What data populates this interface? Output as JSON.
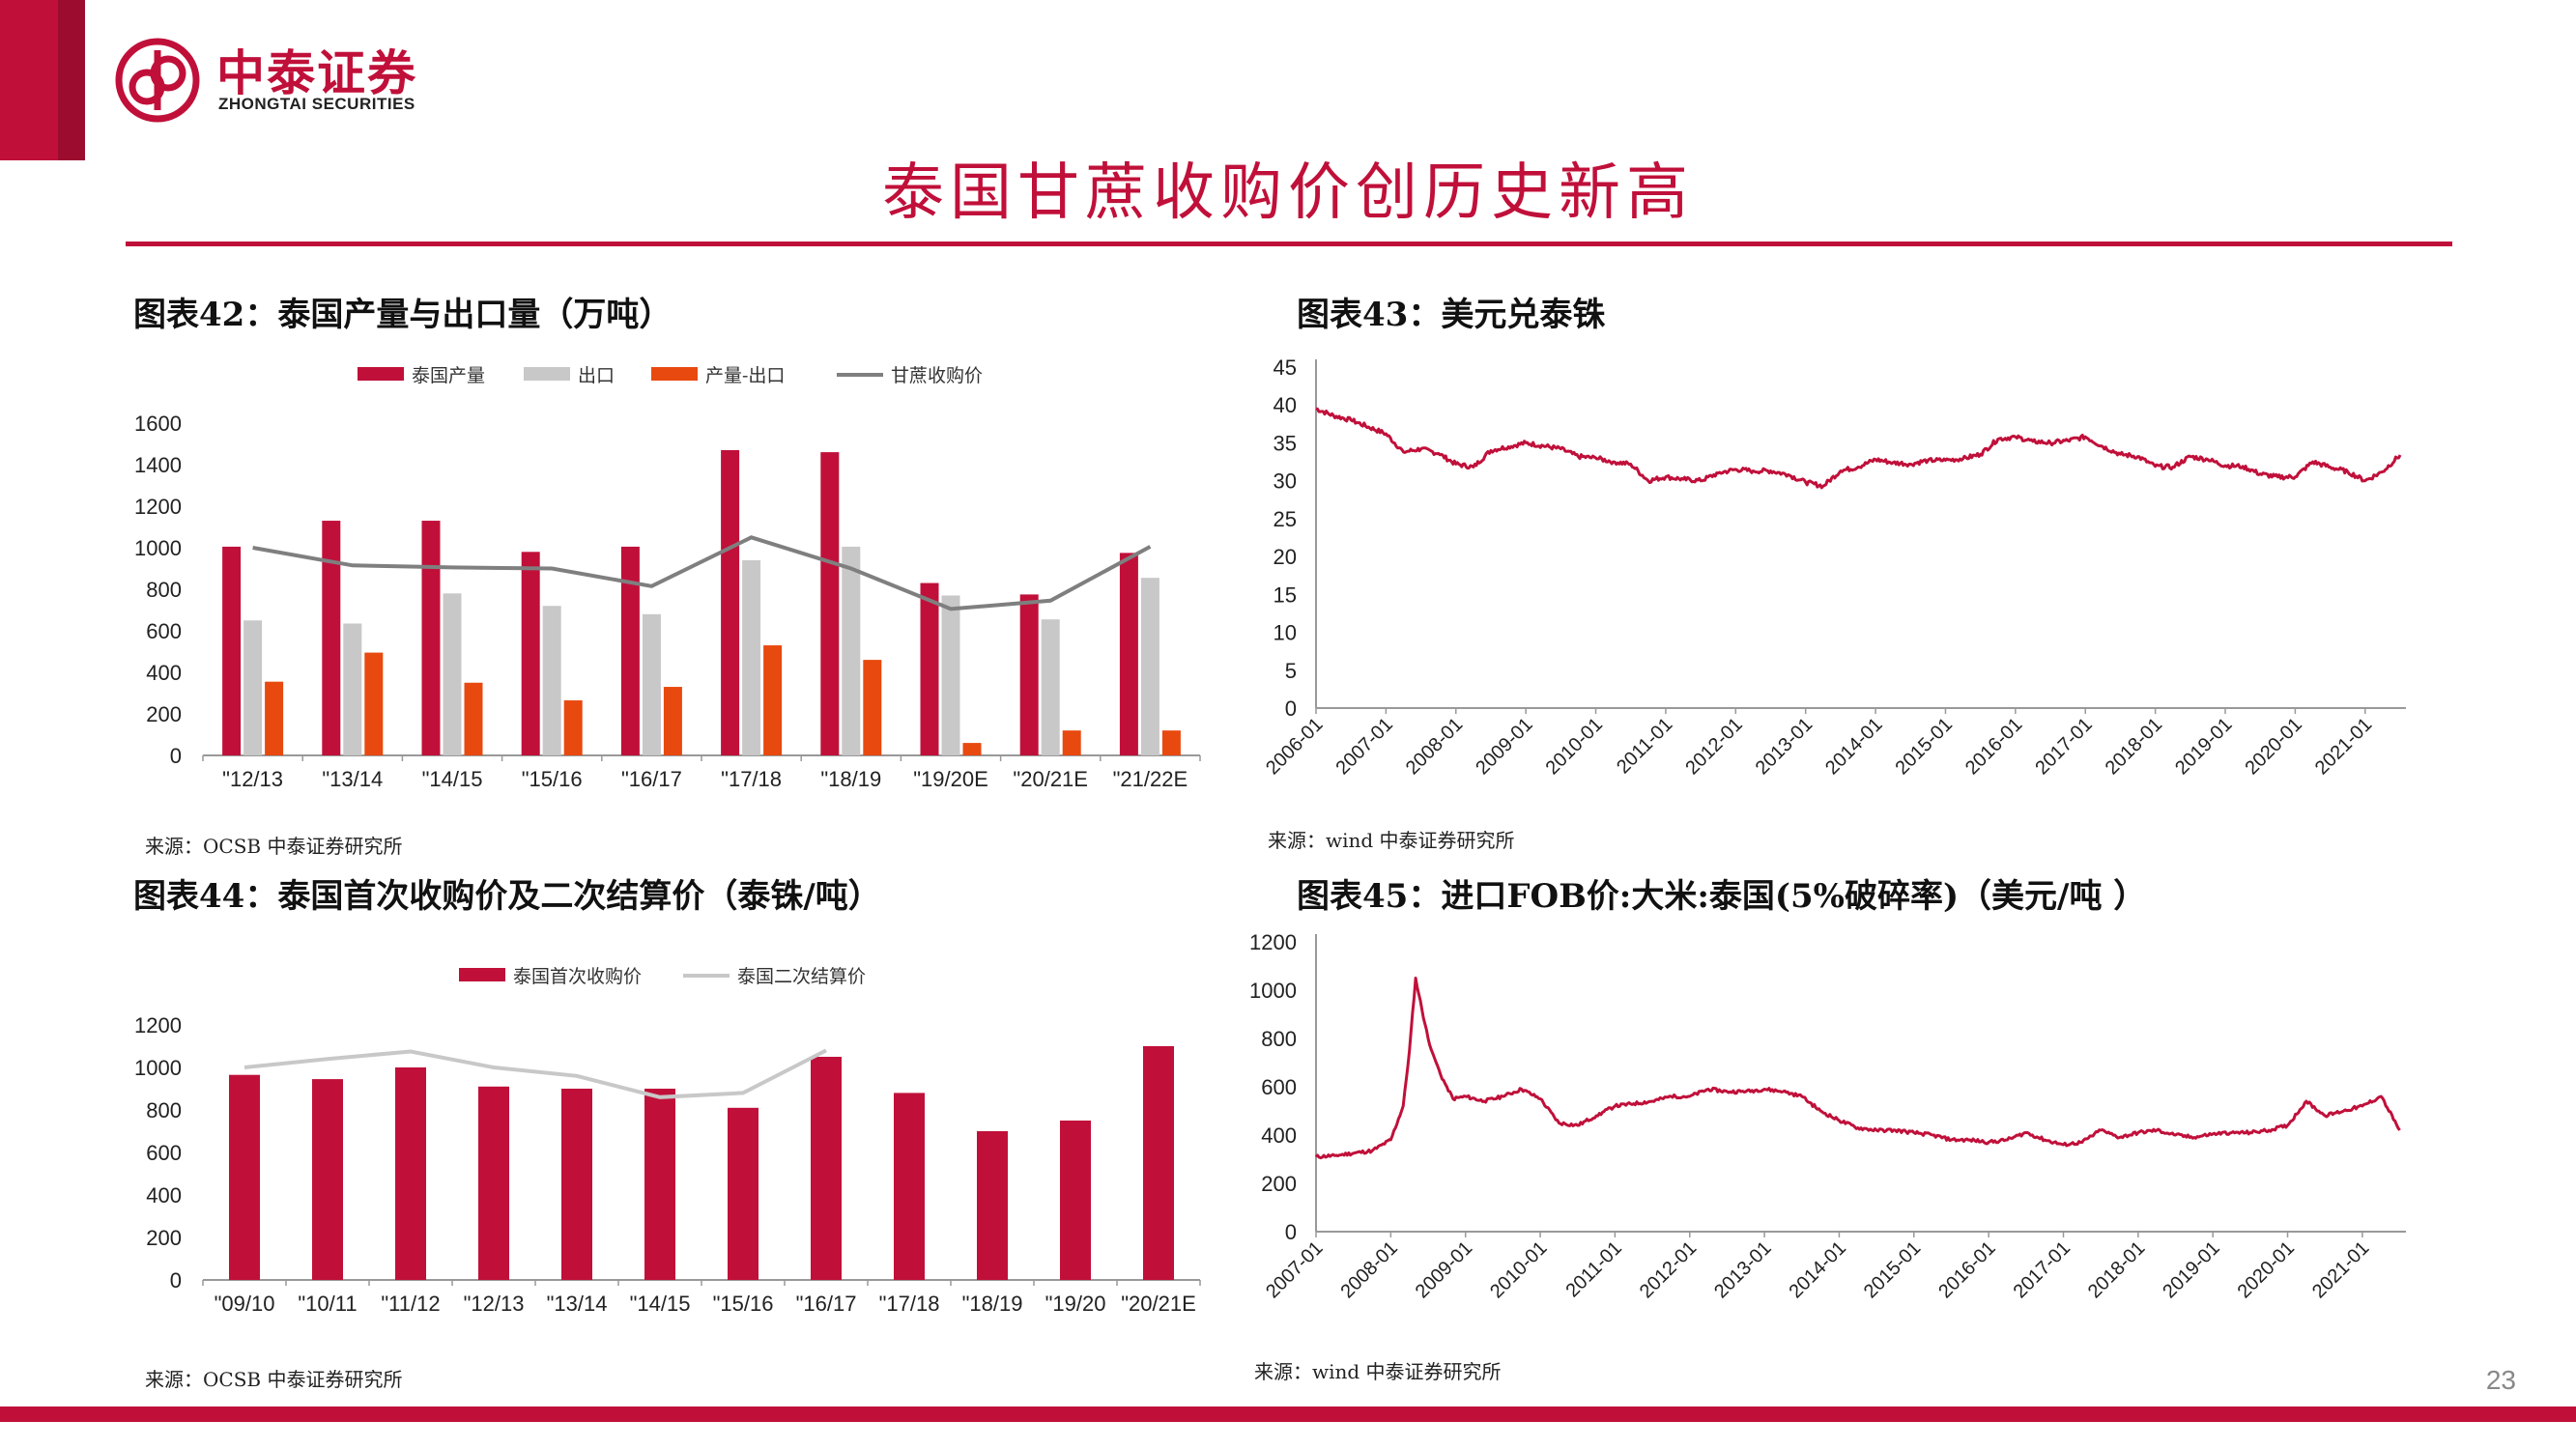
{
  "header": {
    "logo_cn": "中泰证券",
    "logo_en": "ZHONGTAI SECURITIES",
    "brand_color": "#c0103a",
    "title": "泰国甘蔗收购价创历史新高"
  },
  "page_number": "23",
  "charts": {
    "c42": {
      "title": "图表42：泰国产量与出口量（万吨）",
      "source": "来源：OCSB   中泰证券研究所"
    },
    "c43": {
      "title": "图表43：美元兑泰铢",
      "source": "来源：wind   中泰证券研究所"
    },
    "c44": {
      "title": "图表44：泰国首次收购价及二次结算价（泰铢/吨）",
      "source": "来源：OCSB   中泰证券研究所"
    },
    "c45": {
      "title": "图表45：进口FOB价:大米:泰国(5%破碎率)（美元/吨 ）",
      "source": "来源：wind   中泰证券研究所"
    }
  },
  "chart_data": [
    {
      "id": "c42",
      "type": "bar",
      "categories": [
        "\"12/13",
        "\"13/14",
        "\"14/15",
        "\"15/16",
        "\"16/17",
        "\"17/18",
        "\"18/19",
        "\"19/20E",
        "\"20/21E",
        "\"21/22E"
      ],
      "series": [
        {
          "name": "泰国产量",
          "type": "bar",
          "color": "#c0103a",
          "values": [
            1005,
            1130,
            1130,
            980,
            1005,
            1470,
            1460,
            830,
            775,
            975
          ]
        },
        {
          "name": "出口",
          "type": "bar",
          "color": "#c8c8c8",
          "values": [
            650,
            635,
            780,
            720,
            680,
            940,
            1005,
            770,
            655,
            855
          ]
        },
        {
          "name": "产量-出口",
          "type": "bar",
          "color": "#e8490f",
          "values": [
            355,
            495,
            350,
            265,
            330,
            530,
            460,
            60,
            120,
            120
          ]
        },
        {
          "name": "甘蔗收购价",
          "type": "line",
          "color": "#7f7f7f",
          "values": [
            1000,
            915,
            905,
            900,
            815,
            1050,
            900,
            705,
            745,
            1005
          ]
        }
      ],
      "ylim": [
        0,
        1600
      ],
      "yticks": [
        0,
        200,
        400,
        600,
        800,
        1000,
        1200,
        1400,
        1600
      ],
      "legend": "top"
    },
    {
      "id": "c43",
      "type": "line",
      "series": [
        {
          "name": "",
          "color": "#c0103a",
          "x": [
            "2006-01",
            "2006-04",
            "2006-07",
            "2006-10",
            "2007-01",
            "2007-04",
            "2007-07",
            "2007-10",
            "2008-01",
            "2008-04",
            "2008-07",
            "2008-10",
            "2009-01",
            "2009-04",
            "2009-07",
            "2009-10",
            "2010-01",
            "2010-04",
            "2010-07",
            "2010-10",
            "2011-01",
            "2011-04",
            "2011-07",
            "2011-10",
            "2012-01",
            "2012-04",
            "2012-07",
            "2012-10",
            "2013-01",
            "2013-04",
            "2013-07",
            "2013-10",
            "2014-01",
            "2014-04",
            "2014-07",
            "2014-10",
            "2015-01",
            "2015-04",
            "2015-07",
            "2015-10",
            "2016-01",
            "2016-04",
            "2016-07",
            "2016-10",
            "2017-01",
            "2017-04",
            "2017-07",
            "2017-10",
            "2018-01",
            "2018-04",
            "2018-07",
            "2018-10",
            "2019-01",
            "2019-04",
            "2019-07",
            "2019-10",
            "2020-01",
            "2020-04",
            "2020-07",
            "2020-10",
            "2021-01",
            "2021-04",
            "2021-07"
          ],
          "values": [
            39.5,
            38.6,
            38.0,
            37.1,
            36.2,
            33.8,
            34.2,
            33.6,
            32.2,
            31.8,
            34.0,
            34.5,
            35.0,
            34.6,
            34.2,
            33.2,
            33.0,
            32.5,
            32.2,
            30.0,
            30.5,
            30.2,
            30.0,
            31.0,
            31.5,
            31.3,
            31.3,
            30.8,
            29.8,
            29.3,
            31.3,
            31.8,
            32.8,
            32.4,
            32.2,
            32.7,
            32.7,
            32.9,
            33.5,
            35.5,
            35.8,
            35.2,
            35.0,
            35.3,
            35.8,
            34.5,
            33.5,
            33.2,
            31.9,
            31.8,
            33.2,
            32.8,
            32.0,
            31.9,
            30.9,
            30.5,
            30.5,
            32.5,
            31.8,
            31.2,
            30.0,
            31.2,
            33.4
          ]
        }
      ],
      "xlabels": [
        "2006-01",
        "2007-01",
        "2008-01",
        "2009-01",
        "2010-01",
        "2011-01",
        "2012-01",
        "2013-01",
        "2014-01",
        "2015-01",
        "2016-01",
        "2017-01",
        "2018-01",
        "2019-01",
        "2020-01",
        "2021-01"
      ],
      "ylim": [
        0,
        45
      ],
      "yticks": [
        0,
        5,
        10,
        15,
        20,
        25,
        30,
        35,
        40,
        45
      ]
    },
    {
      "id": "c44",
      "type": "bar",
      "categories": [
        "\"09/10",
        "\"10/11",
        "\"11/12",
        "\"12/13",
        "\"13/14",
        "\"14/15",
        "\"15/16",
        "\"16/17",
        "\"17/18",
        "\"18/19",
        "\"19/20",
        "\"20/21E"
      ],
      "series": [
        {
          "name": "泰国首次收购价",
          "type": "bar",
          "color": "#c0103a",
          "values": [
            965,
            945,
            1000,
            910,
            900,
            900,
            810,
            1050,
            880,
            700,
            750,
            1100
          ]
        },
        {
          "name": "泰国二次结算价",
          "type": "line",
          "color": "#c8c8c8",
          "values": [
            1000,
            1040,
            1075,
            1000,
            960,
            860,
            880,
            1080,
            null,
            null,
            null,
            null
          ]
        }
      ],
      "ylim": [
        0,
        1200
      ],
      "yticks": [
        0,
        200,
        400,
        600,
        800,
        1000,
        1200
      ],
      "legend": "top"
    },
    {
      "id": "c45",
      "type": "line",
      "series": [
        {
          "name": "",
          "color": "#c0103a",
          "x": [
            "2007-01",
            "2007-04",
            "2007-07",
            "2007-10",
            "2008-01",
            "2008-03",
            "2008-04",
            "2008-05",
            "2008-06",
            "2008-07",
            "2008-08",
            "2008-09",
            "2008-10",
            "2008-11",
            "2009-01",
            "2009-04",
            "2009-07",
            "2009-10",
            "2010-01",
            "2010-04",
            "2010-07",
            "2010-10",
            "2011-01",
            "2011-04",
            "2011-07",
            "2011-10",
            "2012-01",
            "2012-04",
            "2012-07",
            "2012-10",
            "2013-01",
            "2013-04",
            "2013-07",
            "2013-10",
            "2014-01",
            "2014-04",
            "2014-07",
            "2014-10",
            "2015-01",
            "2015-04",
            "2015-07",
            "2015-10",
            "2016-01",
            "2016-04",
            "2016-07",
            "2016-10",
            "2017-01",
            "2017-04",
            "2017-07",
            "2017-10",
            "2018-01",
            "2018-04",
            "2018-07",
            "2018-10",
            "2019-01",
            "2019-04",
            "2019-07",
            "2019-10",
            "2020-01",
            "2020-04",
            "2020-07",
            "2020-10",
            "2021-01",
            "2021-04",
            "2021-07"
          ],
          "values": [
            310,
            315,
            325,
            335,
            380,
            520,
            750,
            1050,
            920,
            800,
            720,
            650,
            600,
            550,
            560,
            540,
            560,
            590,
            550,
            450,
            440,
            480,
            520,
            530,
            540,
            560,
            560,
            590,
            580,
            580,
            590,
            580,
            560,
            500,
            460,
            430,
            420,
            420,
            410,
            400,
            380,
            380,
            370,
            380,
            410,
            380,
            360,
            370,
            420,
            390,
            410,
            420,
            400,
            390,
            405,
            410,
            410,
            420,
            440,
            540,
            480,
            500,
            520,
            560,
            420
          ]
        }
      ],
      "xlabels": [
        "2007-01",
        "2008-01",
        "2009-01",
        "2010-01",
        "2011-01",
        "2012-01",
        "2013-01",
        "2014-01",
        "2015-01",
        "2016-01",
        "2017-01",
        "2018-01",
        "2019-01",
        "2020-01",
        "2021-01"
      ],
      "ylim": [
        0,
        1200
      ],
      "yticks": [
        0,
        200,
        400,
        600,
        800,
        1000,
        1200
      ]
    }
  ]
}
